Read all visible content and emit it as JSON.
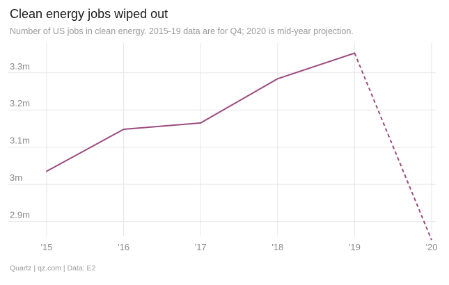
{
  "title": "Clean energy jobs wiped out",
  "subtitle": "Number of US jobs in clean energy. 2015-19 data are for Q4; 2020 is mid-year projection.",
  "footer": "Quartz | qz.com | Data: E2",
  "colors": {
    "line": "#9b4a7e",
    "grid": "#e6e6e6",
    "tick_text": "#8a8a8a"
  },
  "chart_data": {
    "type": "line",
    "title": "Clean energy jobs wiped out",
    "subtitle": "Number of US jobs in clean energy. 2015-19 data are for Q4; 2020 is mid-year projection.",
    "xlabel": "",
    "ylabel": "",
    "x_ticks": [
      "'15",
      "'16",
      "'17",
      "'18",
      "'19",
      "'20"
    ],
    "y_ticks": [
      "2.9m",
      "3m",
      "3.1m",
      "3.2m",
      "3.3m"
    ],
    "y_tick_values": [
      2.9,
      3.0,
      3.1,
      3.2,
      3.3
    ],
    "ylim": [
      2.86,
      3.38
    ],
    "grid": true,
    "series": [
      {
        "style": "solid",
        "x": [
          2015,
          2016,
          2017,
          2018,
          2019
        ],
        "values": [
          3.035,
          3.148,
          3.165,
          3.284,
          3.353
        ]
      },
      {
        "style": "dashed",
        "x": [
          2019,
          2020
        ],
        "values": [
          3.353,
          2.85
        ]
      }
    ]
  }
}
